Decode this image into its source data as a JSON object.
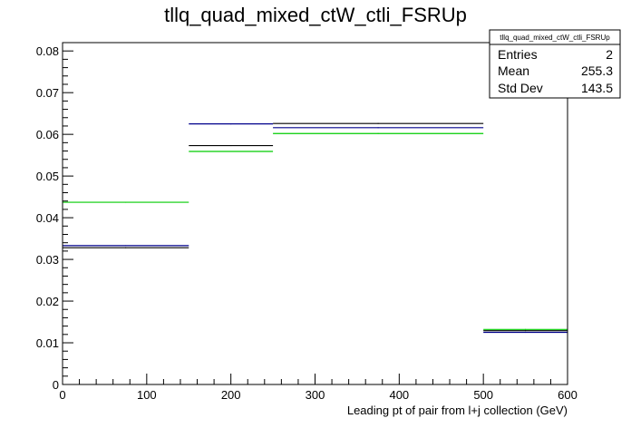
{
  "chart_data": {
    "type": "step",
    "title": "tllq_quad_mixed_ctW_ctli_FSRUp",
    "xlabel": "Leading pt of pair from l+j collection (GeV)",
    "ylabel": "",
    "xlim": [
      0,
      600
    ],
    "ylim": [
      0,
      0.082
    ],
    "x_ticks": [
      0,
      100,
      200,
      300,
      400,
      500,
      600
    ],
    "x_tick_labels": [
      "0",
      "100",
      "200",
      "300",
      "400",
      "500",
      "600"
    ],
    "y_ticks": [
      0,
      0.01,
      0.02,
      0.03,
      0.04,
      0.05,
      0.06,
      0.07,
      0.08
    ],
    "y_tick_labels": [
      "0",
      "0.01",
      "0.02",
      "0.03",
      "0.04",
      "0.05",
      "0.06",
      "0.07",
      "0.08"
    ],
    "grid": false,
    "series": [
      {
        "color": "#000000",
        "bins": [
          {
            "x0": 0,
            "x1": 150,
            "y": 0.0328
          },
          {
            "x0": 150,
            "x1": 250,
            "y": 0.0573
          },
          {
            "x0": 250,
            "x1": 500,
            "y": 0.0626
          },
          {
            "x0": 500,
            "x1": 600,
            "y": 0.0129
          }
        ]
      },
      {
        "color": "#00008b",
        "bins": [
          {
            "x0": 0,
            "x1": 150,
            "y": 0.0333
          },
          {
            "x0": 150,
            "x1": 250,
            "y": 0.0625
          },
          {
            "x0": 250,
            "x1": 500,
            "y": 0.0616
          },
          {
            "x0": 500,
            "x1": 600,
            "y": 0.0125
          }
        ]
      },
      {
        "color": "#00cc00",
        "bins": [
          {
            "x0": 0,
            "x1": 150,
            "y": 0.0437
          },
          {
            "x0": 150,
            "x1": 250,
            "y": 0.0559
          },
          {
            "x0": 250,
            "x1": 500,
            "y": 0.0602
          },
          {
            "x0": 500,
            "x1": 600,
            "y": 0.0132
          }
        ]
      }
    ],
    "stats_box": {
      "title": "tllq_quad_mixed_ctW_ctli_FSRUp",
      "rows": [
        {
          "label": "Entries",
          "value": "2"
        },
        {
          "label": "Mean",
          "value": "255.3"
        },
        {
          "label": "Std Dev",
          "value": "143.5"
        }
      ]
    }
  }
}
